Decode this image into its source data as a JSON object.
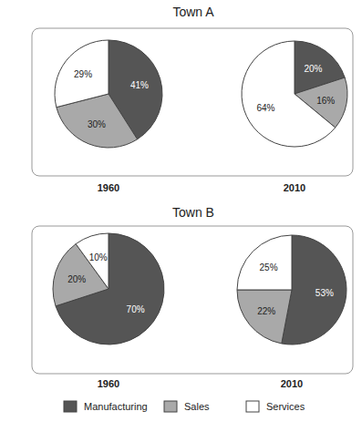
{
  "chart_data": [
    {
      "type": "pie",
      "title": "Town A",
      "categories": [
        "Manufacturing",
        "Sales",
        "Services"
      ],
      "colors": [
        "#555555",
        "#a9a9a9",
        "#ffffff"
      ],
      "data_labels": true,
      "series": [
        {
          "name": "1960",
          "values": [
            41,
            30,
            29
          ],
          "value_labels": [
            "41%",
            "30%",
            "29%"
          ]
        },
        {
          "name": "2010",
          "values": [
            20,
            16,
            64
          ],
          "value_labels": [
            "20%",
            "16%",
            "64%"
          ]
        }
      ]
    },
    {
      "type": "pie",
      "title": "Town B",
      "categories": [
        "Manufacturing",
        "Sales",
        "Services"
      ],
      "colors": [
        "#555555",
        "#a9a9a9",
        "#ffffff"
      ],
      "data_labels": true,
      "legend": "bottom",
      "series": [
        {
          "name": "1960",
          "values": [
            70,
            20,
            10
          ],
          "value_labels": [
            "70%",
            "20%",
            "10%"
          ]
        },
        {
          "name": "2010",
          "values": [
            53,
            22,
            25
          ],
          "value_labels": [
            "53%",
            "22%",
            "25%"
          ]
        }
      ]
    }
  ]
}
